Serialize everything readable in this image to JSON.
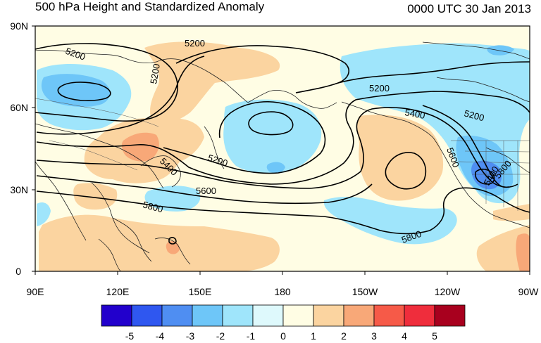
{
  "title_left": "500 hPa Height and Standardized Anomaly",
  "title_right": "0000 UTC 30 Jan 2013",
  "lat_labels": [
    "90N",
    "60N",
    "30N",
    "0"
  ],
  "lon_labels": [
    "90E",
    "120E",
    "150E",
    "180",
    "150W",
    "120W",
    "90W"
  ],
  "contour_labels": [
    "5200",
    "5200",
    "5200",
    "5200",
    "5200",
    "5200",
    "5400",
    "5400",
    "5400",
    "5600",
    "5600",
    "5800",
    "5800",
    "5800"
  ],
  "colorbar": {
    "ticks": [
      "-5",
      "-4",
      "-3",
      "-2",
      "-1",
      "0",
      "1",
      "2",
      "3",
      "4",
      "5"
    ],
    "colors": [
      "#2200cc",
      "#2f57f0",
      "#4f8ef2",
      "#6ec6f8",
      "#9fe5fb",
      "#def9fc",
      "#fffde4",
      "#fbd4a0",
      "#f8a878",
      "#f65a48",
      "#ef2d3c",
      "#a8001e"
    ]
  }
}
